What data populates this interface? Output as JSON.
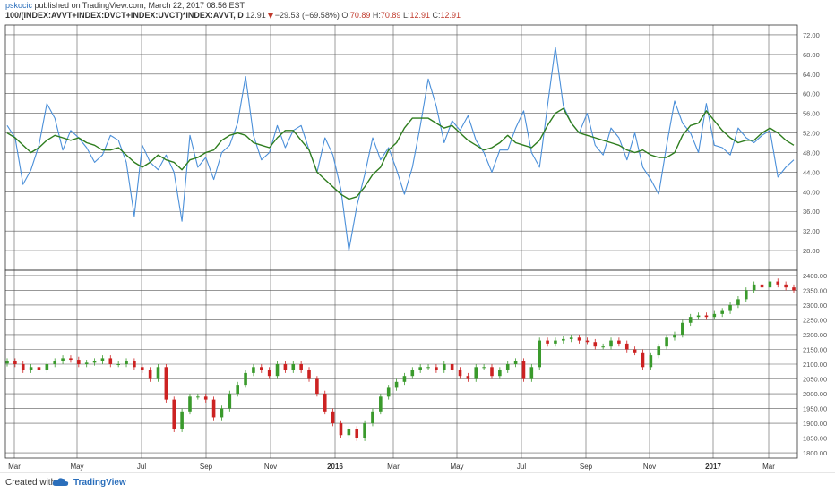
{
  "header": {
    "author": "pskocic",
    "published": "published on TradingView.com, March 22, 2017 08:56 EST",
    "symbol": "100/(INDEX:AVVT+INDEX:DVCT+INDEX:UVCT)*INDEX:AVVT, D",
    "last": "12.91",
    "change": "−29.53 (−69.58%)",
    "o_label": "O:",
    "o_value": "70.89",
    "h_label": "H:",
    "h_value": "70.89",
    "l_label": "L:",
    "l_value": "12.91",
    "c_label": "C:",
    "c_value": "12.91"
  },
  "footer": {
    "created": "Created with",
    "brand": "TradingView"
  },
  "colors": {
    "blue": "#4a8fd9",
    "green": "#2e7d1e",
    "up": "#3a9a2c",
    "down": "#cc2222",
    "grid": "#5a5a5a"
  },
  "chart_data": [
    {
      "type": "line",
      "y_ticks": [
        "72.00",
        "68.00",
        "64.00",
        "60.00",
        "56.00",
        "52.00",
        "48.00",
        "44.00",
        "40.00",
        "36.00",
        "32.00",
        "28.00"
      ],
      "ylim": [
        24,
        74
      ],
      "x_ticks": [
        "Mar",
        "May",
        "Jul",
        "Sep",
        "Nov",
        "2016",
        "Mar",
        "May",
        "Jul",
        "Sep",
        "Nov",
        "2017",
        "Mar"
      ],
      "series": [
        {
          "values": [
            53.5,
            51.0,
            41.5,
            44.5,
            49.5,
            58.0,
            55.0,
            48.5,
            52.5,
            51.0,
            49.0,
            46.0,
            47.5,
            51.5,
            50.5,
            46.0,
            35.0,
            49.5,
            46.0,
            44.5,
            47.5,
            44.0,
            34.0,
            51.5,
            45.0,
            47.0,
            42.5,
            48.0,
            49.5,
            54.0,
            63.5,
            51.5,
            46.5,
            48.0,
            53.5,
            49.0,
            52.5,
            53.5,
            48.5,
            44.0,
            51.0,
            47.5,
            40.5,
            28.0,
            37.0,
            43.5,
            51.0,
            46.5,
            49.0,
            44.5,
            39.5,
            45.0,
            53.5,
            63.0,
            57.5,
            50.0,
            54.5,
            52.5,
            55.5,
            50.5,
            48.0,
            44.0,
            48.5,
            48.5,
            53.0,
            56.5,
            48.0,
            45.0,
            57.5,
            69.5,
            57.5,
            54.0,
            52.0,
            56.0,
            49.5,
            47.5,
            53.0,
            51.0,
            46.5,
            52.0,
            45.0,
            42.5,
            39.5,
            49.5,
            58.5,
            54.0,
            52.0,
            48.0,
            58.0,
            49.5,
            49.0,
            47.5,
            53.0,
            51.0,
            50.0,
            51.5,
            52.5,
            43.0,
            45.0,
            46.5
          ]
        },
        {
          "values": [
            52.0,
            51.0,
            49.5,
            48.0,
            49.0,
            50.5,
            51.5,
            51.0,
            50.5,
            51.0,
            50.0,
            49.5,
            48.5,
            48.5,
            49.0,
            47.5,
            46.0,
            45.0,
            46.0,
            47.5,
            46.5,
            46.0,
            44.5,
            46.5,
            47.0,
            48.0,
            48.5,
            50.5,
            51.5,
            52.0,
            51.5,
            50.0,
            49.5,
            49.0,
            51.0,
            52.5,
            52.5,
            50.5,
            48.5,
            44.0,
            42.5,
            41.0,
            39.5,
            38.5,
            39.0,
            41.0,
            43.5,
            45.0,
            48.5,
            50.0,
            53.0,
            55.0,
            55.0,
            55.0,
            54.0,
            53.0,
            53.5,
            52.0,
            50.5,
            49.5,
            48.5,
            49.0,
            50.0,
            51.5,
            50.0,
            49.5,
            49.0,
            50.5,
            53.5,
            56.0,
            57.0,
            54.0,
            52.0,
            51.5,
            51.0,
            50.5,
            50.0,
            49.5,
            48.5,
            48.0,
            48.5,
            47.5,
            47.0,
            47.0,
            48.0,
            51.5,
            53.5,
            54.0,
            56.5,
            54.5,
            52.5,
            51.0,
            50.0,
            50.5,
            50.5,
            52.0,
            53.0,
            52.0,
            50.5,
            49.5
          ]
        }
      ]
    },
    {
      "type": "candlestick",
      "y_ticks": [
        "2400.00",
        "2350.00",
        "2300.00",
        "2250.00",
        "2200.00",
        "2150.00",
        "2100.00",
        "2050.00",
        "2000.00",
        "1950.00",
        "1900.00",
        "1850.00",
        "1800.00"
      ],
      "ylim": [
        1782,
        2418
      ],
      "x_ticks": [
        "Mar",
        "May",
        "Jul",
        "Sep",
        "Nov",
        "2016",
        "Mar",
        "May",
        "Jul",
        "Sep",
        "Nov",
        "2017",
        "Mar"
      ],
      "close": [
        2110,
        2100,
        2080,
        2090,
        2080,
        2100,
        2110,
        2120,
        2115,
        2100,
        2105,
        2110,
        2120,
        2100,
        2100,
        2110,
        2090,
        2080,
        2050,
        2090,
        1980,
        1880,
        1940,
        1990,
        1990,
        1980,
        1920,
        1950,
        2000,
        2030,
        2070,
        2090,
        2080,
        2060,
        2100,
        2080,
        2100,
        2080,
        2050,
        2000,
        1940,
        1900,
        1860,
        1880,
        1850,
        1900,
        1940,
        1990,
        2020,
        2040,
        2060,
        2080,
        2090,
        2090,
        2080,
        2100,
        2080,
        2060,
        2050,
        2090,
        2090,
        2060,
        2080,
        2100,
        2110,
        2050,
        2090,
        2180,
        2170,
        2180,
        2185,
        2190,
        2180,
        2175,
        2160,
        2160,
        2180,
        2170,
        2150,
        2140,
        2090,
        2130,
        2160,
        2190,
        2200,
        2240,
        2260,
        2265,
        2260,
        2270,
        2280,
        2300,
        2320,
        2350,
        2370,
        2360,
        2380,
        2370,
        2360,
        2350
      ]
    }
  ]
}
